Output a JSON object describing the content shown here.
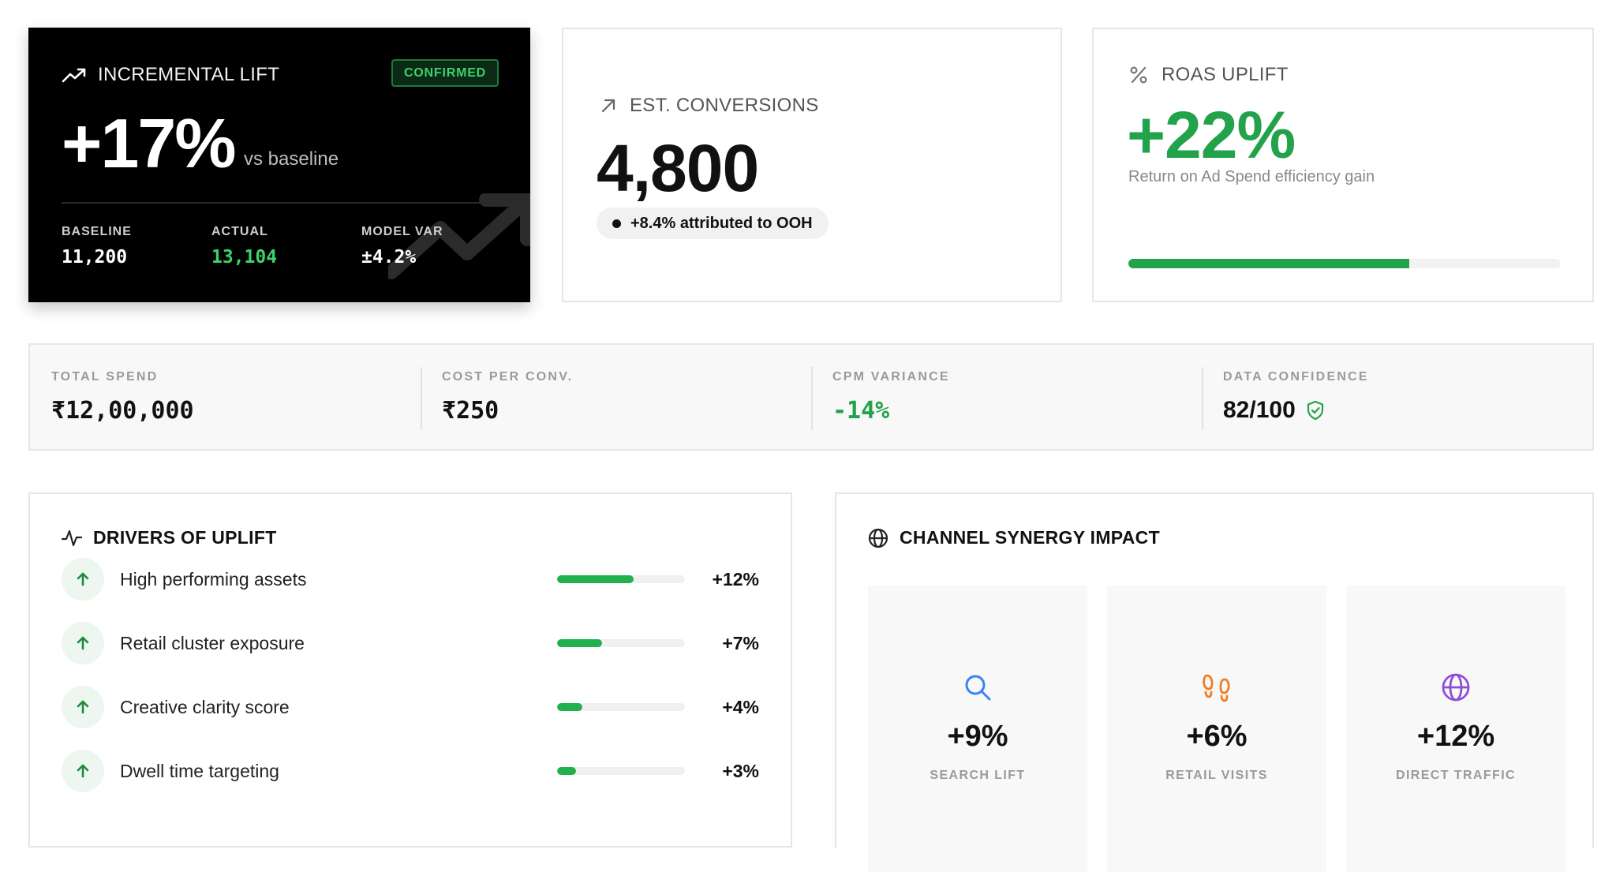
{
  "lift": {
    "label": "INCREMENTAL LIFT",
    "badge": "CONFIRMED",
    "value": "+17%",
    "vs": "vs baseline",
    "stats": [
      {
        "key": "BASELINE",
        "value": "11,200",
        "color": "#ffffff"
      },
      {
        "key": "ACTUAL",
        "value": "13,104",
        "color": "#3ed26b"
      },
      {
        "key": "MODEL VAR",
        "value": "±4.2%",
        "color": "#ffffff"
      }
    ]
  },
  "conversions": {
    "label": "EST. CONVERSIONS",
    "value": "4,800",
    "note": "+8.4% attributed to OOH"
  },
  "roas": {
    "label": "ROAS UPLIFT",
    "value": "+22%",
    "sub": "Return on Ad Spend efficiency gain",
    "progress": 0.65,
    "accent": "#22a24a"
  },
  "metrics": [
    {
      "key": "TOTAL SPEND",
      "value": "₹12,00,000",
      "mono": true,
      "color": "#111111"
    },
    {
      "key": "COST PER CONV.",
      "value": "₹250",
      "mono": true,
      "color": "#111111"
    },
    {
      "key": "CPM VARIANCE",
      "value": "-14%",
      "mono": true,
      "color": "#22a24a"
    },
    {
      "key": "DATA CONFIDENCE",
      "value": "82/100",
      "mono": false,
      "color": "#111111",
      "icon": "shield-check-icon"
    }
  ],
  "drivers": {
    "title": "DRIVERS OF UPLIFT",
    "items": [
      {
        "label": "High performing assets",
        "value": "+12%",
        "level": 0.6
      },
      {
        "label": "Retail cluster exposure",
        "value": "+7%",
        "level": 0.35
      },
      {
        "label": "Creative clarity score",
        "value": "+4%",
        "level": 0.2
      },
      {
        "label": "Dwell time targeting",
        "value": "+3%",
        "level": 0.15
      }
    ]
  },
  "synergy": {
    "title": "CHANNEL SYNERGY IMPACT",
    "tiles": [
      {
        "icon": "search-icon",
        "value": "+9%",
        "label": "SEARCH LIFT",
        "color": "#3b82f6"
      },
      {
        "icon": "footprints-icon",
        "value": "+6%",
        "label": "RETAIL VISITS",
        "color": "#f07d24"
      },
      {
        "icon": "globe-icon",
        "value": "+12%",
        "label": "DIRECT TRAFFIC",
        "color": "#8b4fd8"
      }
    ]
  }
}
